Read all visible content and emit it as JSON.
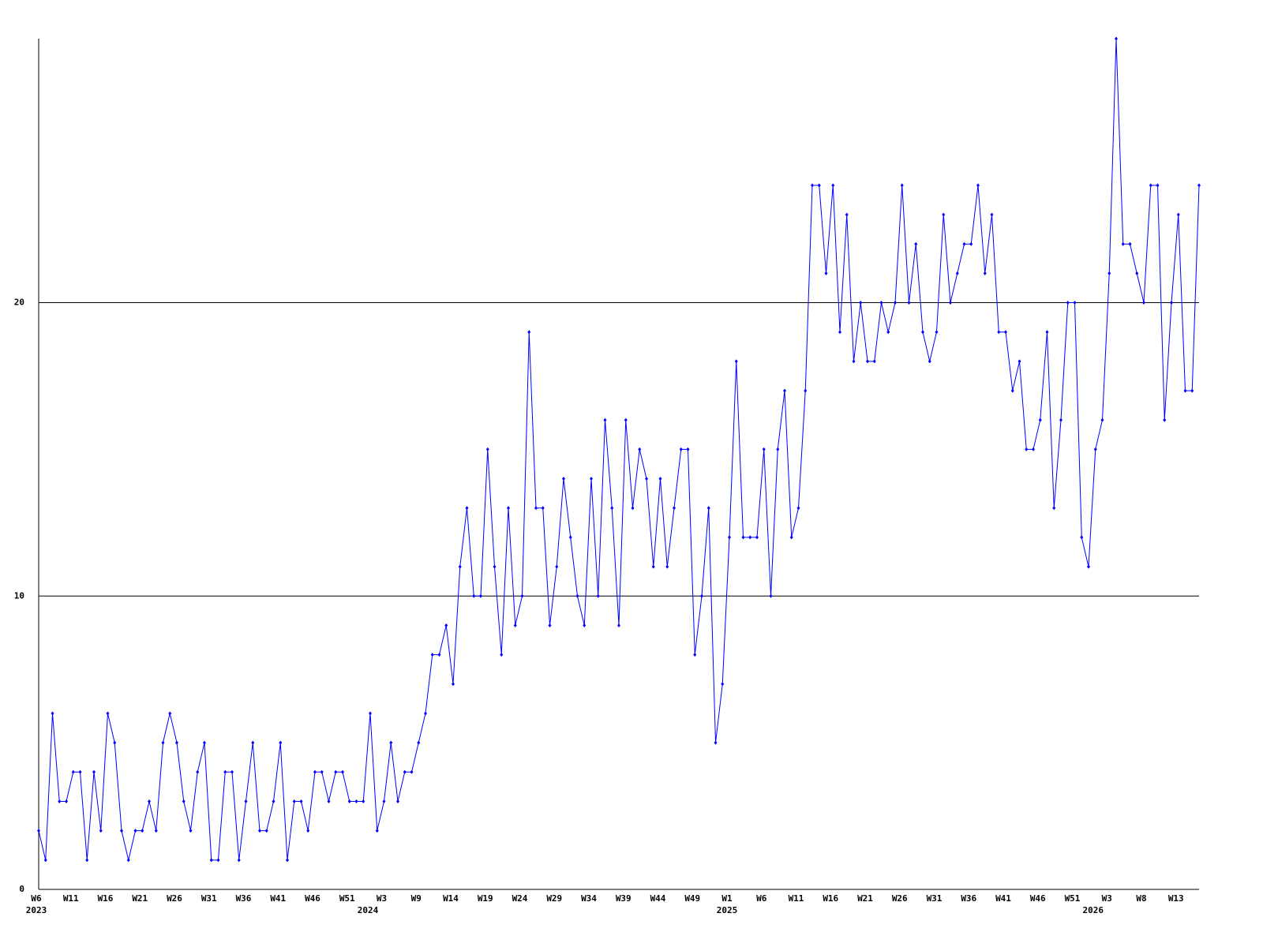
{
  "chart_data": {
    "type": "line",
    "categories": [
      "W6",
      null,
      null,
      null,
      null,
      "W11",
      null,
      null,
      null,
      null,
      "W16",
      null,
      null,
      null,
      null,
      "W21",
      null,
      null,
      null,
      null,
      "W26",
      null,
      null,
      null,
      null,
      "W31",
      null,
      null,
      null,
      null,
      "W36",
      null,
      null,
      null,
      null,
      "W41",
      null,
      null,
      null,
      null,
      "W46",
      null,
      null,
      null,
      null,
      "W51",
      null,
      null,
      null,
      null,
      "W3",
      null,
      null,
      null,
      null,
      "W9",
      null,
      null,
      null,
      null,
      "W14",
      null,
      null,
      null,
      null,
      "W19",
      null,
      null,
      null,
      null,
      "W24",
      null,
      null,
      null,
      null,
      "W29",
      null,
      null,
      null,
      null,
      "W34",
      null,
      null,
      null,
      null,
      "W39",
      null,
      null,
      null,
      null,
      "W44",
      null,
      null,
      null,
      null,
      "W49",
      null,
      null,
      null,
      null,
      "W1",
      null,
      null,
      null,
      null,
      "W6",
      null,
      null,
      null,
      null,
      "W11",
      null,
      null,
      null,
      null,
      "W16",
      null,
      null,
      null,
      null,
      "W21",
      null,
      null,
      null,
      null,
      "W26",
      null,
      null,
      null,
      null,
      "W31",
      null,
      null,
      null,
      null,
      "W36",
      null,
      null,
      null,
      null,
      "W41",
      null,
      null,
      null,
      null,
      "W46",
      null,
      null,
      null,
      null,
      "W51",
      null,
      null,
      null,
      null,
      "W3",
      null,
      null,
      null,
      null,
      "W8",
      null,
      null,
      null,
      null,
      "W13",
      null,
      null,
      null
    ],
    "category_years": [
      "2023",
      null,
      null,
      null,
      null,
      null,
      null,
      null,
      null,
      null,
      null,
      null,
      null,
      null,
      null,
      null,
      null,
      null,
      null,
      null,
      null,
      null,
      null,
      null,
      null,
      null,
      null,
      null,
      null,
      null,
      null,
      null,
      null,
      null,
      null,
      null,
      null,
      null,
      null,
      null,
      null,
      null,
      null,
      null,
      null,
      null,
      null,
      null,
      "2024",
      null,
      null,
      null,
      null,
      null,
      null,
      null,
      null,
      null,
      null,
      null,
      null,
      null,
      null,
      null,
      null,
      null,
      null,
      null,
      null,
      null,
      null,
      null,
      null,
      null,
      null,
      null,
      null,
      null,
      null,
      null,
      null,
      null,
      null,
      null,
      null,
      null,
      null,
      null,
      null,
      null,
      null,
      null,
      null,
      null,
      null,
      null,
      null,
      null,
      null,
      null,
      "2025",
      null,
      null,
      null,
      null,
      null,
      null,
      null,
      null,
      null,
      null,
      null,
      null,
      null,
      null,
      null,
      null,
      null,
      null,
      null,
      null,
      null,
      null,
      null,
      null,
      null,
      null,
      null,
      null,
      null,
      null,
      null,
      null,
      null,
      null,
      null,
      null,
      null,
      null,
      null,
      null,
      null,
      null,
      null,
      null,
      null,
      null,
      null,
      null,
      null,
      null,
      null,
      null,
      "2026",
      null,
      null,
      null,
      null,
      null,
      null,
      null,
      null,
      null,
      null,
      null,
      null,
      null,
      null,
      null
    ],
    "series": [
      {
        "color": "#0000ff",
        "values": [
          2,
          1,
          6,
          3,
          3,
          4,
          4,
          1,
          4,
          2,
          6,
          5,
          2,
          1,
          2,
          2,
          3,
          2,
          5,
          6,
          5,
          3,
          2,
          4,
          5,
          1,
          1,
          4,
          4,
          1,
          3,
          5,
          2,
          2,
          3,
          5,
          1,
          3,
          3,
          2,
          4,
          4,
          3,
          4,
          4,
          3,
          3,
          3,
          6,
          2,
          3,
          5,
          3,
          4,
          4,
          5,
          6,
          8,
          8,
          9,
          7,
          11,
          13,
          10,
          10,
          15,
          11,
          8,
          13,
          9,
          10,
          19,
          13,
          13,
          9,
          11,
          14,
          12,
          10,
          9,
          14,
          10,
          16,
          13,
          9,
          16,
          13,
          15,
          14,
          11,
          14,
          11,
          13,
          15,
          15,
          8,
          10,
          13,
          5,
          7,
          12,
          18,
          12,
          12,
          12,
          15,
          10,
          15,
          17,
          12,
          13,
          17,
          24,
          24,
          21,
          24,
          19,
          23,
          18,
          20,
          18,
          18,
          20,
          19,
          20,
          24,
          20,
          22,
          19,
          18,
          19,
          23,
          20,
          21,
          22,
          22,
          24,
          21,
          23,
          19,
          19,
          17,
          18,
          15,
          15,
          16,
          19,
          13,
          16,
          20,
          20,
          12,
          11,
          15,
          16,
          21,
          29,
          22,
          22,
          21,
          20,
          24,
          24,
          16,
          20,
          23,
          17,
          17,
          24
        ]
      }
    ],
    "ylim": [
      0,
      29
    ],
    "yticks": [
      0,
      10,
      20
    ],
    "grid": true
  }
}
